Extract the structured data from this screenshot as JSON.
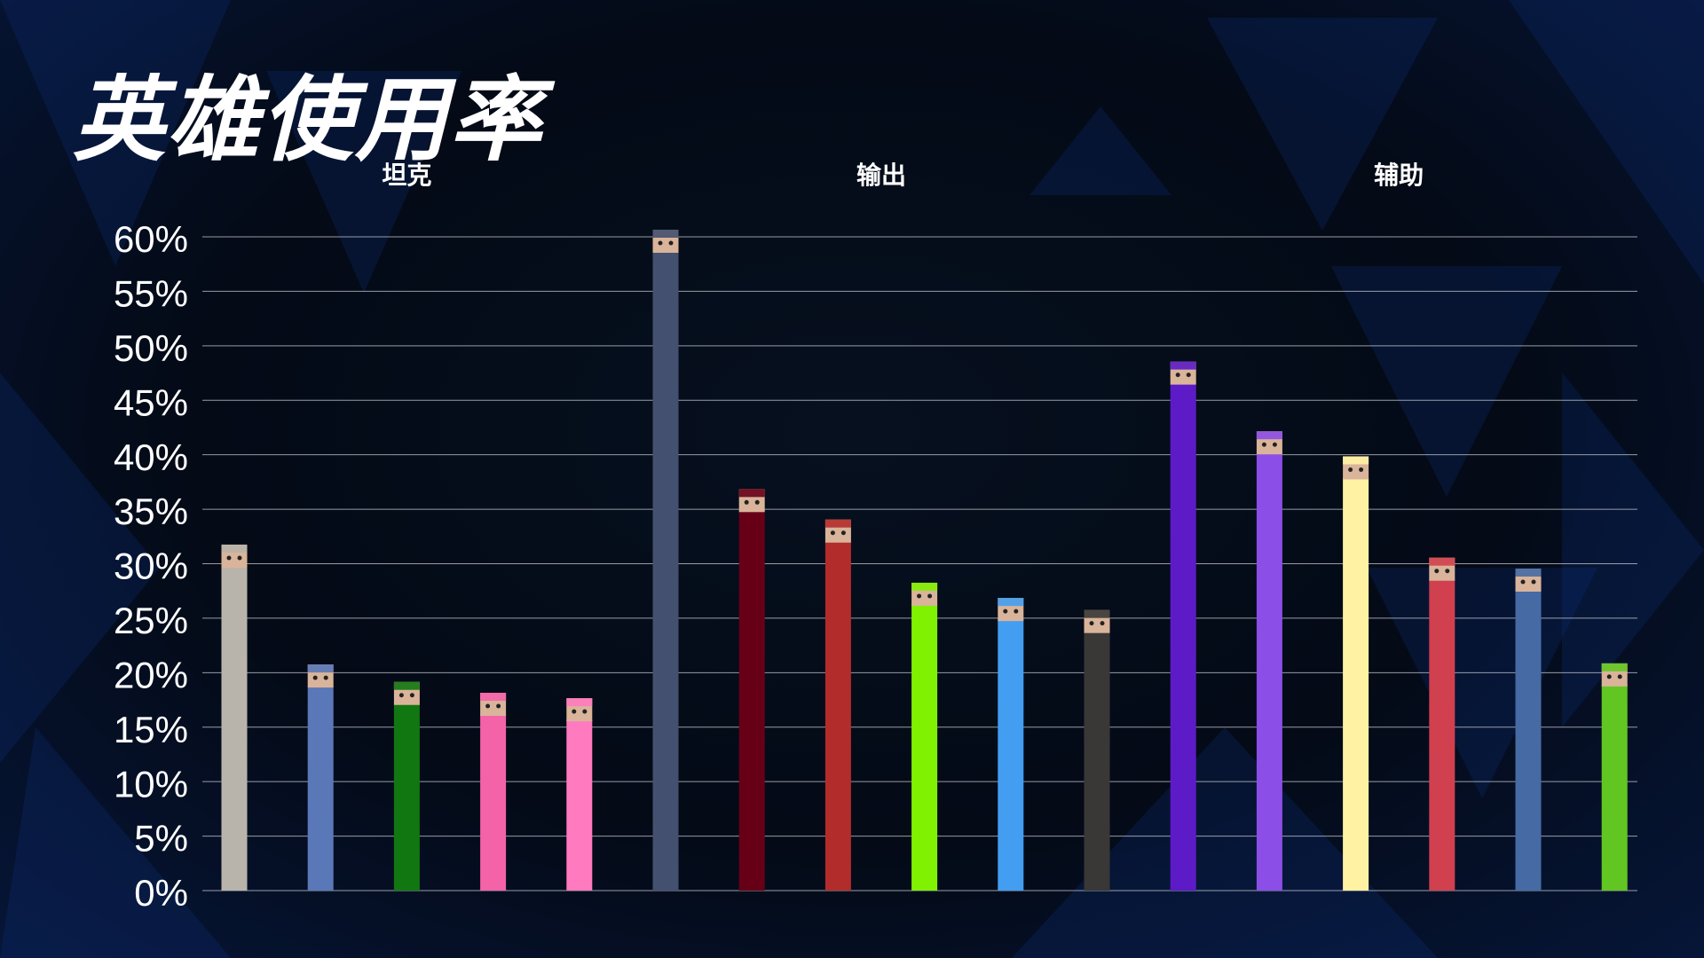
{
  "title": "英雄使用率",
  "chart_data": {
    "type": "bar",
    "ylim": [
      0,
      60
    ],
    "ticks": [
      "0%",
      "5%",
      "10%",
      "15%",
      "20%",
      "25%",
      "30%",
      "35%",
      "40%",
      "45%",
      "50%",
      "55%",
      "60%"
    ],
    "grid": true,
    "groups": [
      {
        "label": "坦克",
        "bars": [
          {
            "value": 29.8,
            "color": "#b9b4ab",
            "icon": "hero-portrait-icon"
          },
          {
            "value": 18.8,
            "color": "#5a78b8",
            "icon": "hero-portrait-icon"
          },
          {
            "value": 17.2,
            "color": "#117711",
            "icon": "hero-portrait-icon"
          },
          {
            "value": 16.2,
            "color": "#f462a8",
            "icon": "hero-portrait-icon"
          },
          {
            "value": 15.7,
            "color": "#ff7abf",
            "icon": "hero-portrait-icon"
          }
        ]
      },
      {
        "label": "输出",
        "bars": [
          {
            "value": 58.7,
            "color": "#44506f",
            "icon": "hero-portrait-icon"
          },
          {
            "value": 34.9,
            "color": "#670017",
            "icon": "hero-portrait-icon"
          },
          {
            "value": 32.1,
            "color": "#b32c2c",
            "icon": "hero-portrait-icon"
          },
          {
            "value": 26.3,
            "color": "#80f100",
            "icon": "hero-portrait-icon"
          },
          {
            "value": 24.9,
            "color": "#439ef1",
            "icon": "hero-portrait-icon"
          },
          {
            "value": 23.8,
            "color": "#393837",
            "icon": "hero-portrait-icon"
          }
        ]
      },
      {
        "label": "辅助",
        "bars": [
          {
            "value": 46.6,
            "color": "#5c1bc7",
            "icon": "hero-portrait-icon"
          },
          {
            "value": 40.2,
            "color": "#8b4ee6",
            "icon": "hero-portrait-icon"
          },
          {
            "value": 37.9,
            "color": "#fff3a3",
            "icon": "hero-portrait-icon"
          },
          {
            "value": 28.6,
            "color": "#d0404f",
            "icon": "hero-portrait-icon"
          },
          {
            "value": 27.6,
            "color": "#466aa4",
            "icon": "hero-portrait-icon"
          },
          {
            "value": 18.9,
            "color": "#62c622",
            "icon": "hero-portrait-icon"
          }
        ]
      }
    ]
  }
}
